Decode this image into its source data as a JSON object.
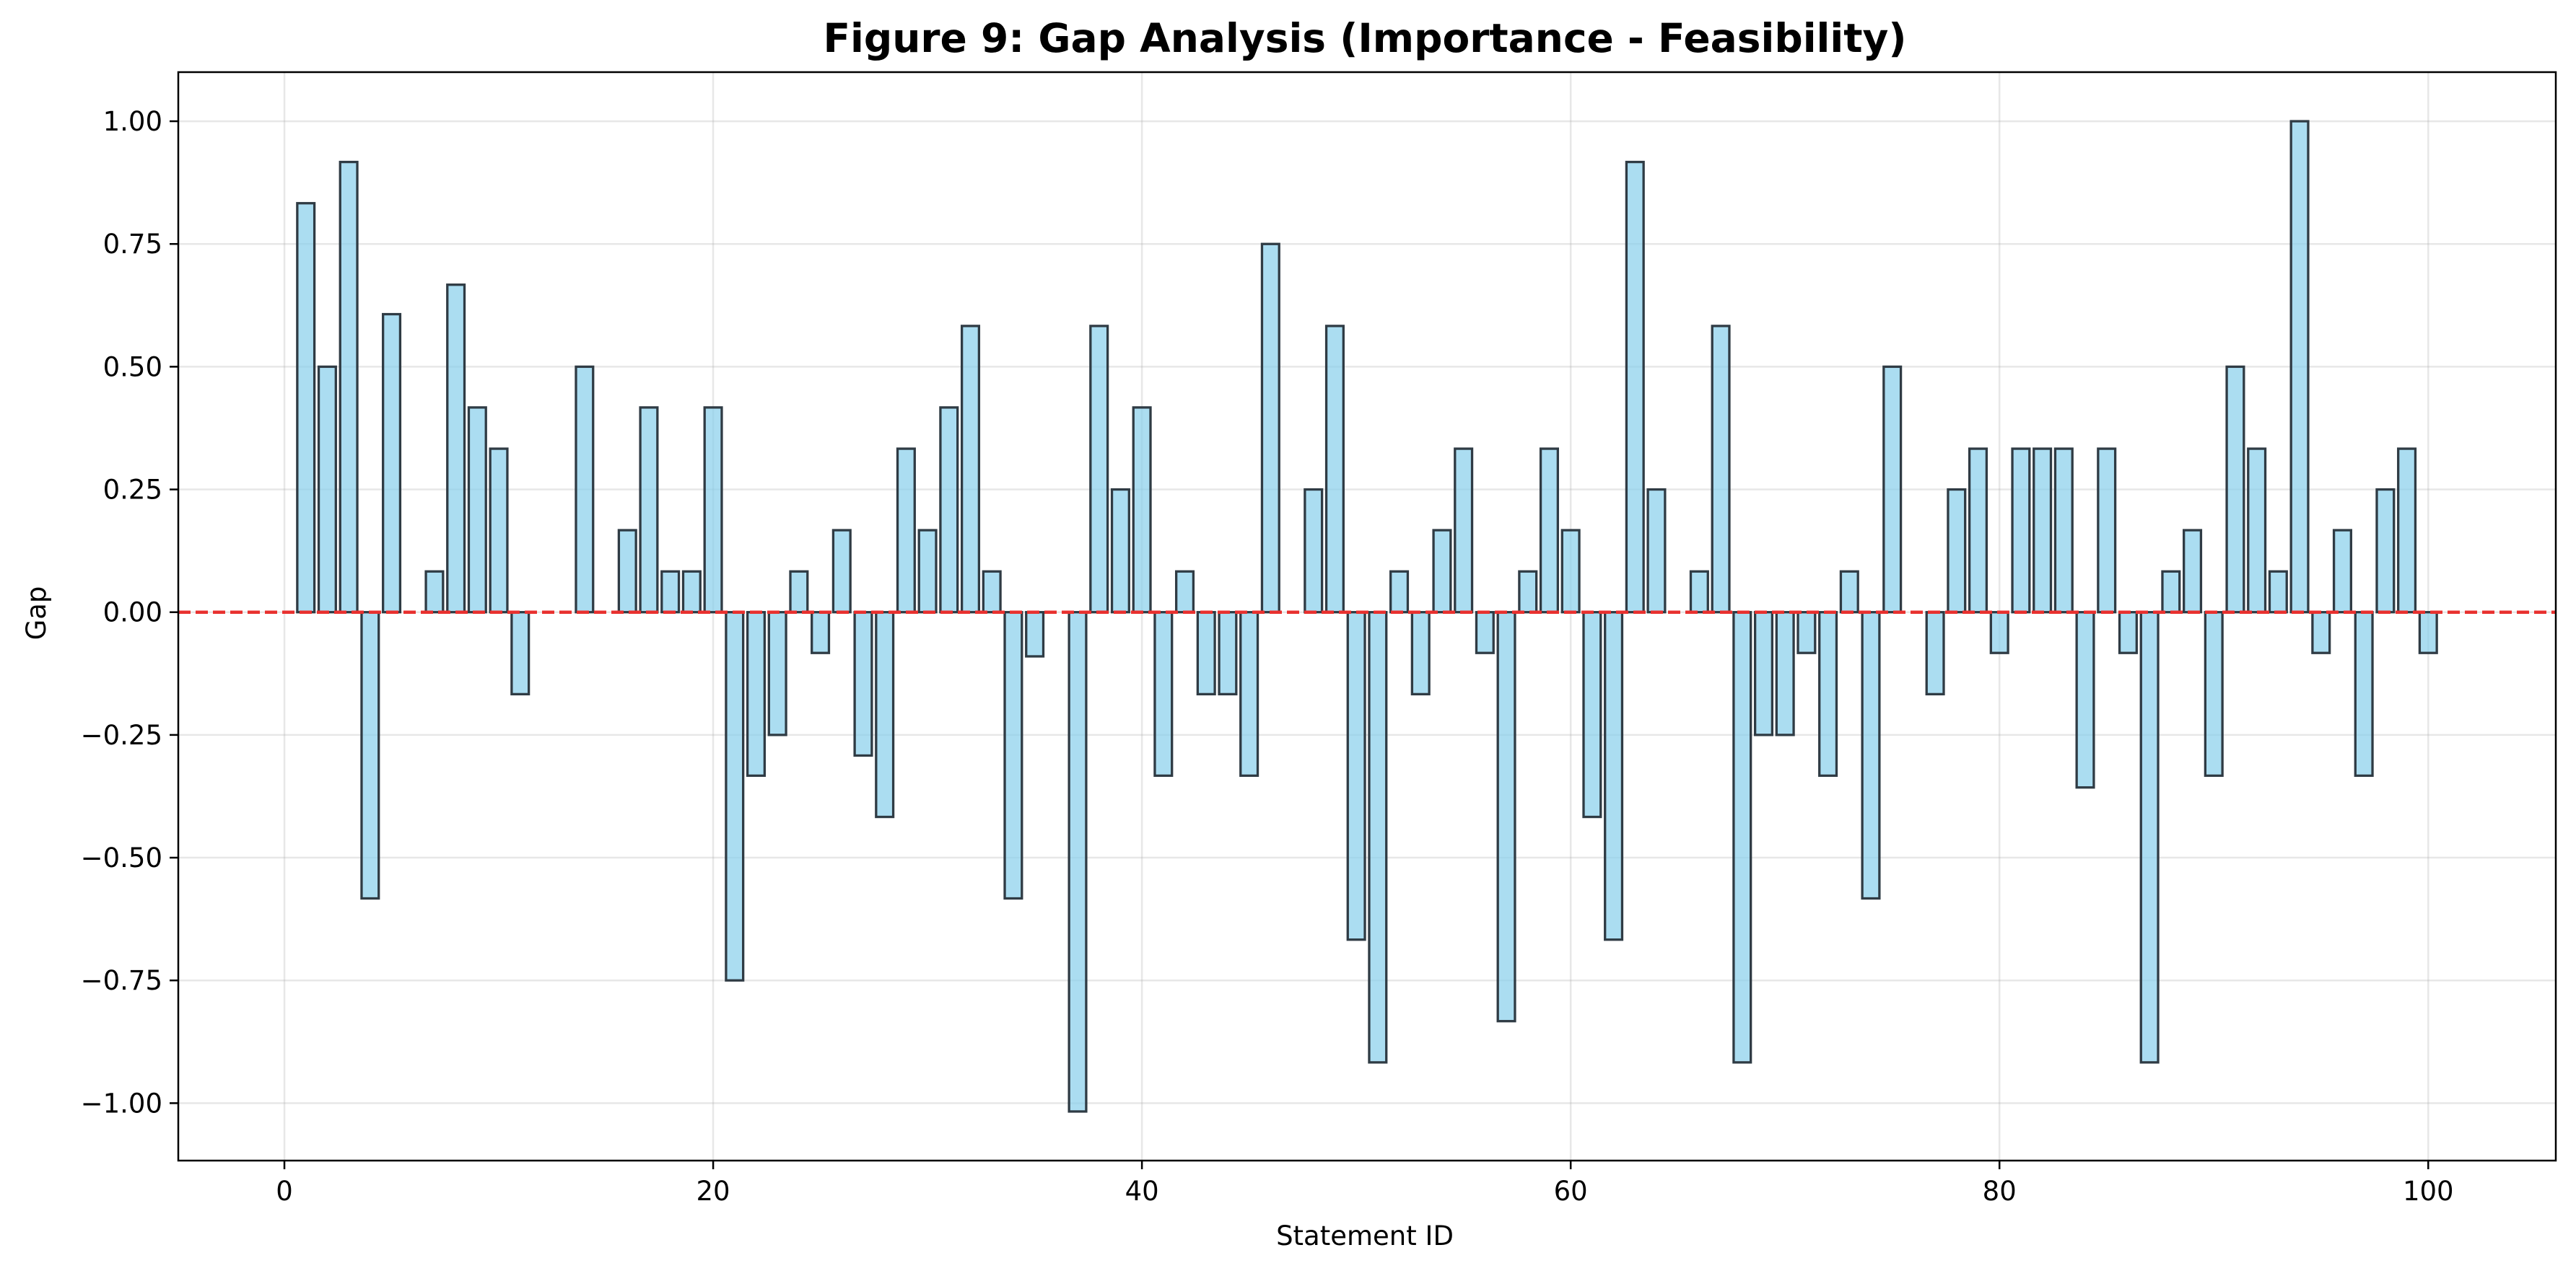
{
  "chart_data": {
    "type": "bar",
    "title": "Figure 9: Gap Analysis (Importance - Feasibility)",
    "xlabel": "Statement ID",
    "ylabel": "Gap",
    "xlim": [
      -4.95,
      105.95
    ],
    "ylim": [
      -1.117,
      1.1
    ],
    "xticks": [
      0,
      20,
      40,
      60,
      80,
      100
    ],
    "yticks": [
      1.0,
      0.75,
      0.5,
      0.25,
      0.0,
      -0.25,
      -0.5,
      -0.75,
      -1.0
    ],
    "x_tick_labels": [
      "0",
      "20",
      "40",
      "60",
      "80",
      "100"
    ],
    "y_tick_labels": [
      "1.00",
      "0.75",
      "0.50",
      "0.25",
      "0.00",
      "−0.25",
      "−0.50",
      "−0.75",
      "−1.00"
    ],
    "grid": true,
    "reference_line": {
      "y": 0,
      "style": "dashed",
      "color": "#e8312f"
    },
    "colors": {
      "bar_fill": "#87ceeb",
      "bar_edge": "#2f3b44"
    },
    "x": [
      1,
      2,
      3,
      4,
      5,
      6,
      7,
      8,
      9,
      10,
      11,
      12,
      13,
      14,
      15,
      16,
      17,
      18,
      19,
      20,
      21,
      22,
      23,
      24,
      25,
      26,
      27,
      28,
      29,
      30,
      31,
      32,
      33,
      34,
      35,
      36,
      37,
      38,
      39,
      40,
      41,
      42,
      43,
      44,
      45,
      46,
      47,
      48,
      49,
      50,
      51,
      52,
      53,
      54,
      55,
      56,
      57,
      58,
      59,
      60,
      61,
      62,
      63,
      64,
      65,
      66,
      67,
      68,
      69,
      70,
      71,
      72,
      73,
      74,
      75,
      76,
      77,
      78,
      79,
      80,
      81,
      82,
      83,
      84,
      85,
      86,
      87,
      88,
      89,
      90,
      91,
      92,
      93,
      94,
      95,
      96,
      97,
      98,
      99,
      100
    ],
    "values": [
      0.833,
      0.5,
      0.917,
      -0.583,
      0.607,
      0,
      0.083,
      0.667,
      0.417,
      0.333,
      -0.167,
      0,
      0,
      0.5,
      0,
      0.167,
      0.417,
      0.083,
      0.083,
      0.417,
      -0.75,
      -0.333,
      -0.25,
      0.083,
      -0.083,
      0.167,
      -0.292,
      -0.417,
      0.333,
      0.167,
      0.417,
      0.583,
      0.083,
      -0.583,
      -0.09,
      0,
      -1.017,
      0.583,
      0.25,
      0.417,
      -0.333,
      0.083,
      -0.167,
      -0.167,
      -0.333,
      0.75,
      0,
      0.25,
      0.583,
      -0.667,
      -0.917,
      0.083,
      -0.167,
      0.167,
      0.333,
      -0.083,
      -0.833,
      0.083,
      0.333,
      0.167,
      -0.417,
      -0.667,
      0.917,
      0.25,
      0,
      0.083,
      0.583,
      -0.917,
      -0.25,
      -0.25,
      -0.083,
      -0.333,
      0.083,
      -0.583,
      0.5,
      0,
      -0.167,
      0.25,
      0.333,
      -0.083,
      0.333,
      0.333,
      0.333,
      -0.357,
      0.333,
      -0.083,
      -0.917,
      0.083,
      0.167,
      -0.333,
      0.5,
      0.333,
      0.083,
      1.0,
      -0.083,
      0.167,
      -0.333,
      0.25,
      0.333,
      -0.083
    ]
  }
}
